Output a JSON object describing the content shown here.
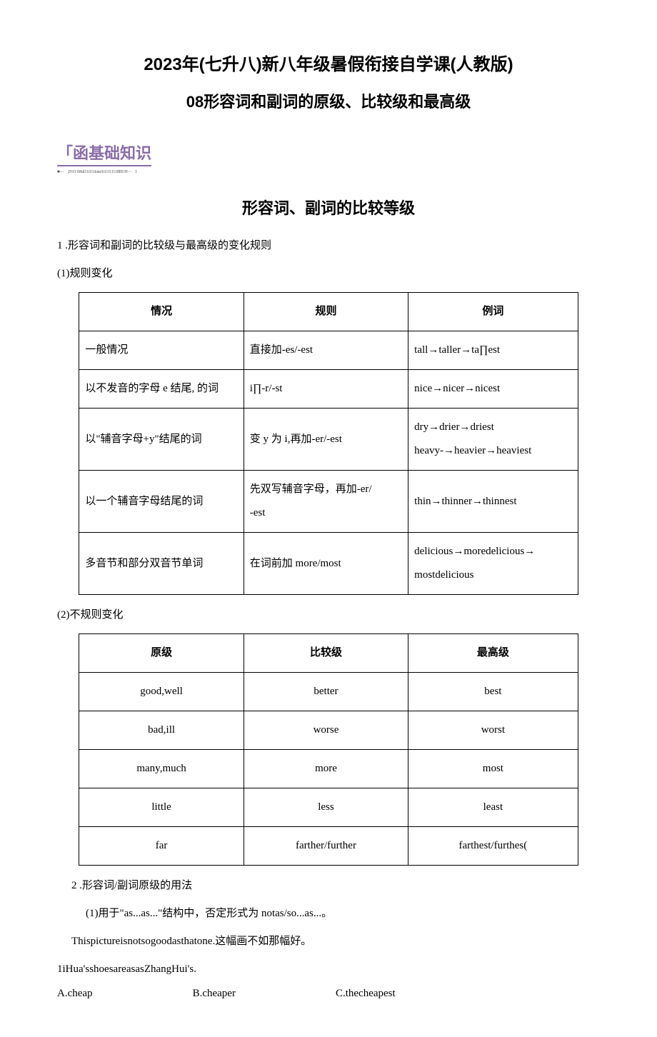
{
  "titles": {
    "main": "2023年(七升八)新八年级暑假衔接自学课(人教版)",
    "sub": "08形容词和副词的原级、比较级和最高级",
    "section_header": "「函基础知识",
    "tiny": "■—　,IN111Mul11i111iuiai1t1111111IIIIUH—　I",
    "topic": "形容词、副词的比较等级"
  },
  "p1": "1 .形容词和副词的比较级与最高级的变化规则",
  "p2": "(1)规则变化",
  "table1": {
    "headers": [
      "情况",
      "规则",
      "例词"
    ],
    "rows": [
      [
        "一般情况",
        "直接加-es/-est",
        "tall→taller→ta∏est"
      ],
      [
        "以不发音的字母 e 结尾, 的词",
        "i∏-r/-st",
        "nice→nicer→nicest"
      ],
      [
        "以\"辅音字母+y\"结尾的词",
        "变 y 为 i,再加-er/-est",
        "dry→drier→driest\nheavy-→heavier→heaviest"
      ],
      [
        "以一个辅音字母结尾的词",
        "先双写辅音字母，再加-er/\n-est",
        "thin→thinner→thinnest"
      ],
      [
        "多音节和部分双音节单词",
        "在词前加 more/most",
        "delicious→moredelicious→\nmostdelicious"
      ]
    ]
  },
  "p3": "(2)不规则变化",
  "table2": {
    "headers": [
      "原级",
      "比较级",
      "最高级"
    ],
    "rows": [
      [
        "good,well",
        "better",
        "best"
      ],
      [
        "bad,ill",
        "worse",
        "worst"
      ],
      [
        "many,much",
        "more",
        "most"
      ],
      [
        "little",
        "less",
        "least"
      ],
      [
        "far",
        "farther/further",
        "farthest/furthes("
      ]
    ]
  },
  "p4": "2 .形容词/副词原级的用法",
  "p5": "(1)用于\"as...as...\"结构中，否定形式为 notas/so...as...。",
  "p6": "Thispictureisnotsogoodasthatone.这幅画不如那幅好。",
  "p7": "1iHua'sshoesareasasZhangHui's.",
  "options": {
    "a": "A.cheap",
    "b": "B.cheaper",
    "c": "C.thecheapest"
  },
  "colors": {
    "text": "#000000",
    "bg": "#ffffff",
    "accent": "#8a6da8"
  }
}
